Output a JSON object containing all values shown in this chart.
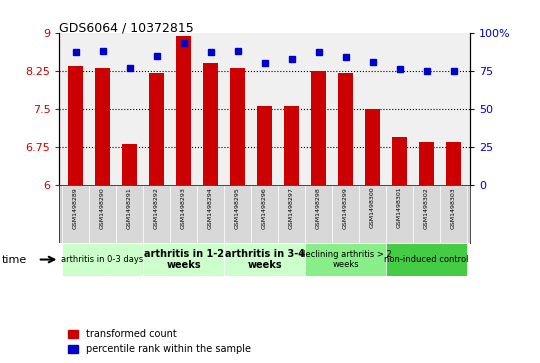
{
  "title": "GDS6064 / 10372815",
  "samples": [
    "GSM1498289",
    "GSM1498290",
    "GSM1498291",
    "GSM1498292",
    "GSM1498293",
    "GSM1498294",
    "GSM1498295",
    "GSM1498296",
    "GSM1498297",
    "GSM1498298",
    "GSM1498299",
    "GSM1498300",
    "GSM1498301",
    "GSM1498302",
    "GSM1498303"
  ],
  "bar_values": [
    8.35,
    8.3,
    6.8,
    8.2,
    8.93,
    8.4,
    8.3,
    7.55,
    7.55,
    8.25,
    8.2,
    7.5,
    6.95,
    6.85,
    6.85
  ],
  "dot_values": [
    87,
    88,
    77,
    85,
    93,
    87,
    88,
    80,
    83,
    87,
    84,
    81,
    76,
    75,
    75
  ],
  "bar_color": "#cc0000",
  "dot_color": "#0000cc",
  "ylim_left": [
    6.0,
    9.0
  ],
  "ylim_right": [
    0,
    100
  ],
  "yticks_left": [
    6.0,
    6.75,
    7.5,
    8.25,
    9.0
  ],
  "ytick_labels_left": [
    "6",
    "6.75",
    "7.5",
    "8.25",
    "9"
  ],
  "yticks_right": [
    0,
    25,
    50,
    75,
    100
  ],
  "ytick_labels_right": [
    "0",
    "25",
    "50",
    "75",
    "100%"
  ],
  "groups": [
    {
      "label": "arthritis in 0-3 days",
      "start": 0,
      "end": 3,
      "bold": false,
      "color": "#ccffcc",
      "fontsize": 6
    },
    {
      "label": "arthritis in 1-2\nweeks",
      "start": 3,
      "end": 6,
      "bold": true,
      "color": "#ccffcc",
      "fontsize": 7
    },
    {
      "label": "arthritis in 3-4\nweeks",
      "start": 6,
      "end": 9,
      "bold": true,
      "color": "#ccffcc",
      "fontsize": 7
    },
    {
      "label": "declining arthritis > 2\nweeks",
      "start": 9,
      "end": 12,
      "bold": false,
      "color": "#88ee88",
      "fontsize": 6
    },
    {
      "label": "non-induced control",
      "start": 12,
      "end": 15,
      "bold": false,
      "color": "#44cc44",
      "fontsize": 6
    }
  ],
  "legend_red": "transformed count",
  "legend_blue": "percentile rank within the sample",
  "time_label": "time",
  "bg_plot": "#f0f0f0",
  "bg_sample": "#d0d0d0",
  "background_color": "#ffffff"
}
